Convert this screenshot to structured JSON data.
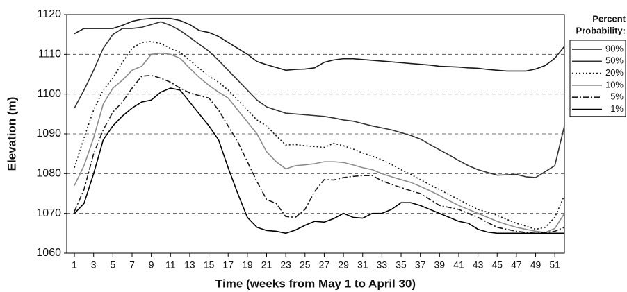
{
  "chart_data": {
    "type": "line",
    "y_label": "Elevation (m)",
    "x_label": "Time (weeks from May 1 to April 30)",
    "legend_title": [
      "Percent",
      "Probability:"
    ],
    "legend_position": "right",
    "grid": true,
    "x": [
      1,
      2,
      3,
      4,
      5,
      6,
      7,
      8,
      9,
      10,
      11,
      12,
      13,
      14,
      15,
      16,
      17,
      18,
      19,
      20,
      21,
      22,
      23,
      24,
      25,
      26,
      27,
      28,
      29,
      30,
      31,
      32,
      33,
      34,
      35,
      36,
      37,
      38,
      39,
      40,
      41,
      42,
      43,
      44,
      45,
      46,
      47,
      48,
      49,
      50,
      51,
      52
    ],
    "xlim": [
      0.2,
      52
    ],
    "xticks": [
      1,
      3,
      5,
      7,
      9,
      11,
      13,
      15,
      17,
      19,
      21,
      23,
      25,
      27,
      29,
      31,
      33,
      35,
      37,
      39,
      41,
      43,
      45,
      47,
      49,
      51
    ],
    "ylim": [
      1060,
      1120
    ],
    "yticks": [
      1060,
      1070,
      1080,
      1090,
      1100,
      1110,
      1120
    ],
    "series": [
      {
        "name": "90%",
        "color": "#1a1a1a",
        "dash": "solid",
        "values": [
          1115.2,
          1116.5,
          1116.5,
          1116.5,
          1116.5,
          1117.3,
          1118.3,
          1118.8,
          1119,
          1119,
          1119,
          1118.5,
          1117.5,
          1116,
          1115.5,
          1114.5,
          1113,
          1111.5,
          1110,
          1108.2,
          1107.4,
          1106.7,
          1106,
          1106.2,
          1106.3,
          1106.6,
          1108,
          1108.6,
          1108.9,
          1108.9,
          1108.7,
          1108.5,
          1108.3,
          1108.1,
          1107.9,
          1107.7,
          1107.5,
          1107.3,
          1107,
          1106.9,
          1106.8,
          1106.6,
          1106.5,
          1106.2,
          1106,
          1105.8,
          1105.8,
          1105.8,
          1106.3,
          1107.2,
          1109,
          1112
        ]
      },
      {
        "name": "50%",
        "color": "#333333",
        "dash": "solid",
        "values": [
          1096.5,
          1101,
          1106,
          1111.5,
          1115,
          1116.5,
          1116.5,
          1116.8,
          1117.5,
          1118.2,
          1117.3,
          1116,
          1114.3,
          1112.5,
          1110.8,
          1108.5,
          1106,
          1103.5,
          1101,
          1098.5,
          1096.8,
          1096,
          1095.2,
          1095,
          1094.8,
          1094.6,
          1094.4,
          1094,
          1093.5,
          1093.2,
          1092.6,
          1092,
          1091.5,
          1091,
          1090.3,
          1089.6,
          1088.7,
          1087.3,
          1086,
          1084.7,
          1083.3,
          1082,
          1081,
          1080.3,
          1079.6,
          1079.7,
          1079.8,
          1079.2,
          1079,
          1080.5,
          1082,
          1092
        ]
      },
      {
        "name": "20%",
        "color": "#1a1a1a",
        "dash": "dotted",
        "values": [
          1081.5,
          1089,
          1096,
          1101,
          1104,
          1108,
          1111.5,
          1113,
          1113.2,
          1112.7,
          1111.5,
          1110.5,
          1108.5,
          1106.5,
          1104.5,
          1103,
          1101,
          1098.5,
          1096,
          1093.5,
          1092,
          1089.5,
          1087.2,
          1087.3,
          1087,
          1086.8,
          1086.6,
          1087.6,
          1087,
          1086.2,
          1085.2,
          1084.4,
          1083.5,
          1082.3,
          1081,
          1079.8,
          1078.5,
          1077.2,
          1076,
          1074.7,
          1073.5,
          1072.2,
          1071,
          1070.3,
          1069.5,
          1068.5,
          1067.5,
          1066.8,
          1066,
          1066.5,
          1069,
          1074.5
        ]
      },
      {
        "name": "10%",
        "color": "#8c8c8c",
        "dash": "solid",
        "values": [
          1077,
          1082,
          1089,
          1097.5,
          1101.5,
          1103.5,
          1106,
          1107,
          1110,
          1110.3,
          1110,
          1109,
          1106.5,
          1104.2,
          1102.2,
          1100.5,
          1099,
          1096,
          1093,
          1090,
          1085.5,
          1083,
          1081.2,
          1082,
          1082.2,
          1082.5,
          1083,
          1083,
          1082.8,
          1082.2,
          1081.5,
          1081,
          1080,
          1079.2,
          1078.5,
          1077.8,
          1076.8,
          1075.7,
          1074.5,
          1073.2,
          1072,
          1071,
          1070,
          1069,
          1068,
          1067.2,
          1066.5,
          1066,
          1065.5,
          1065.2,
          1066.2,
          1070
        ]
      },
      {
        "name": "5%",
        "color": "#1a1a1a",
        "dash": "dashdot",
        "values": [
          1070.5,
          1076,
          1085,
          1091,
          1095.5,
          1098,
          1101.5,
          1104.5,
          1104.7,
          1104,
          1103,
          1101.5,
          1100.3,
          1099.6,
          1099,
          1096,
          1092,
          1088,
          1083,
          1078,
          1073.5,
          1072.5,
          1069.2,
          1069,
          1071,
          1075.5,
          1078.5,
          1078.4,
          1079,
          1079.3,
          1079.5,
          1079.5,
          1078.2,
          1077.3,
          1076.5,
          1075.7,
          1075,
          1073.5,
          1072,
          1071.5,
          1071,
          1070,
          1069,
          1067.7,
          1066.5,
          1066,
          1065.5,
          1065.2,
          1065,
          1065.2,
          1065.5,
          1066.5
        ]
      },
      {
        "name": "1%",
        "color": "#000000",
        "dash": "solid",
        "values": [
          1070,
          1072.5,
          1080,
          1088.5,
          1092,
          1094.5,
          1096.5,
          1098,
          1098.5,
          1100.5,
          1101.5,
          1101,
          1098,
          1095,
          1092,
          1088.5,
          1081.5,
          1075,
          1069,
          1066.5,
          1065.7,
          1065.5,
          1065,
          1065.8,
          1067,
          1068,
          1067.8,
          1068.7,
          1070,
          1069,
          1068.8,
          1070,
          1070,
          1071,
          1072.7,
          1072.7,
          1072,
          1071,
          1070,
          1069,
          1068,
          1067.5,
          1066,
          1065.3,
          1065,
          1065,
          1065,
          1065,
          1065,
          1065,
          1065,
          1065
        ]
      }
    ]
  }
}
